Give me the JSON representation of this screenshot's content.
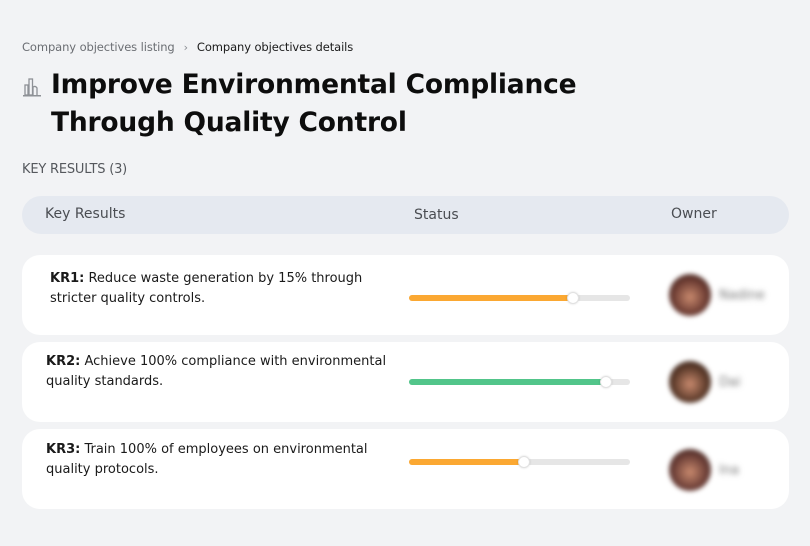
{
  "breadcrumb": {
    "items": [
      {
        "label": "Company objectives listing"
      },
      {
        "label": "Company objectives details"
      }
    ],
    "separator": "›"
  },
  "objective": {
    "icon": "building-chart-icon",
    "title": "Improve Environmental Compliance Through Quality Control"
  },
  "key_results_section": {
    "label": "KEY RESULTS (3)"
  },
  "table": {
    "headers": {
      "key_results": "Key Results",
      "status": "Status",
      "owner": "Owner"
    },
    "rows": [
      {
        "code": "KR1:",
        "text": " Reduce waste generation by 15% through stricter quality controls.",
        "progress_percent": 74,
        "progress_color": "#fba832",
        "owner_name": "Nadine",
        "owner_blurred": true,
        "avatar_color": "#6b3b32"
      },
      {
        "code": "KR2:",
        "text": " Achieve 100% compliance with environmental quality standards.",
        "progress_percent": 89,
        "progress_color": "#52c58a",
        "owner_name": "Dai",
        "owner_blurred": true,
        "avatar_color": "#5b3a2a"
      },
      {
        "code": "KR3:",
        "text": " Train 100% of employees on environmental quality protocols.",
        "progress_percent": 52,
        "progress_color": "#fba832",
        "owner_name": "Ina",
        "owner_blurred": true,
        "avatar_color": "#6a3d36"
      }
    ]
  },
  "colors": {
    "background": "#f2f3f5",
    "header_bg": "#e5e9f0",
    "row_bg": "#ffffff",
    "progress_track": "#e6e6e6",
    "orange": "#fba832",
    "green": "#52c58a"
  }
}
